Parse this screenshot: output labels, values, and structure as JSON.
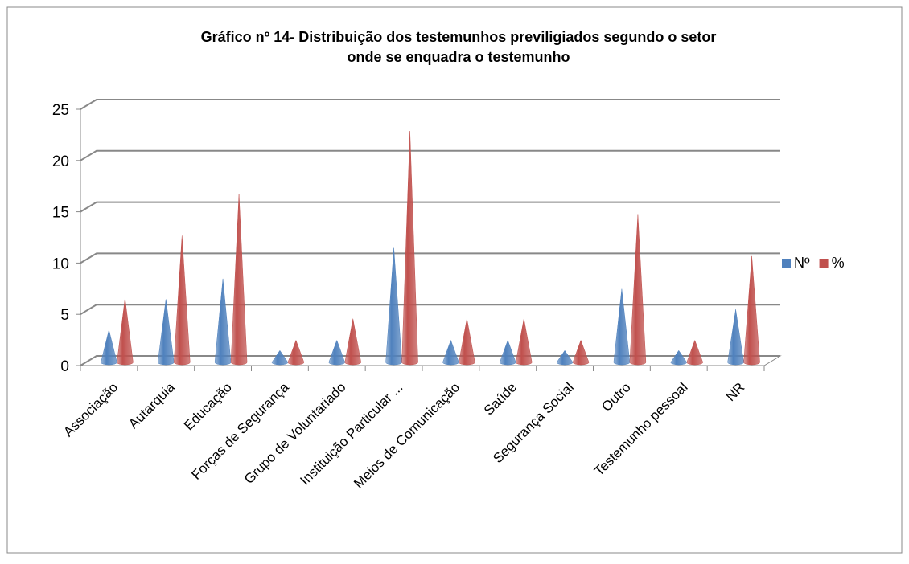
{
  "chart_data": {
    "type": "cone3d",
    "title": "Gráfico  nº 14- Distribuição dos testemunhos previligiados segundo o setor",
    "title_line2": "onde se enquadra o testemunho",
    "categories": [
      "Associação",
      "Autarquia",
      "Educação",
      "Forças de Segurança",
      "Grupo de Voluntariado",
      "Instituição Particular ...",
      "Meios de Comunicação",
      "Saúde",
      "Segurança Social",
      "Outro",
      "Testemunho pessoal",
      "NR"
    ],
    "series": [
      {
        "name": "Nº",
        "color": "#4f81bd",
        "values": [
          3,
          6,
          8,
          1,
          2,
          11,
          2,
          2,
          1,
          7,
          1,
          5
        ]
      },
      {
        "name": "%",
        "color": "#c0504d",
        "values": [
          6.1,
          12.2,
          16.3,
          2.0,
          4.1,
          22.4,
          4.1,
          4.1,
          2.0,
          14.3,
          2.0,
          10.2
        ]
      }
    ],
    "ylim": [
      0,
      25
    ],
    "yticks": [
      0,
      5,
      10,
      15,
      20,
      25
    ],
    "grid": true,
    "legend": "right"
  }
}
